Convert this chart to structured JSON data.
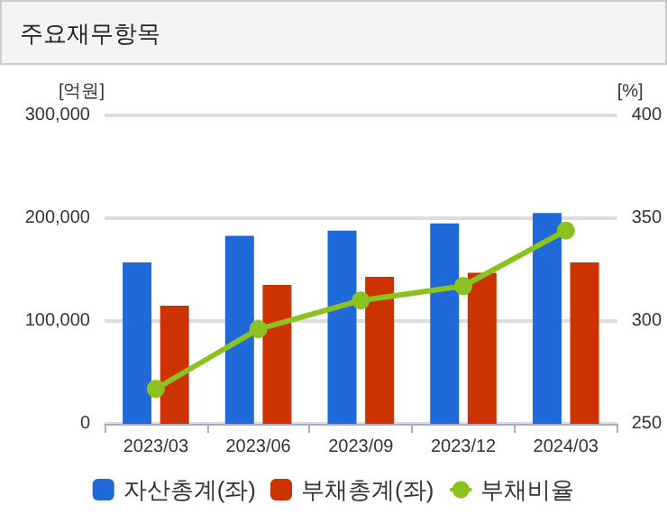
{
  "chart_data": {
    "type": "bar",
    "title": "주요재무항목",
    "ylabel": "[억원]",
    "y2label": "[%]",
    "categories": [
      "2023/03",
      "2023/06",
      "2023/09",
      "2023/12",
      "2024/03"
    ],
    "series": [
      {
        "name": "자산총계(좌)",
        "color": "#1f6ad8",
        "values": [
          157000,
          183000,
          188000,
          195000,
          205000
        ]
      },
      {
        "name": "부채총계(좌)",
        "color": "#cc3300",
        "values": [
          115000,
          135000,
          143000,
          147000,
          157000
        ]
      },
      {
        "name": "부채비율",
        "type": "line",
        "axis": "y2",
        "color": "#8cc21f",
        "marker": "circle",
        "values": [
          267,
          296,
          310,
          317,
          344
        ]
      }
    ],
    "ylim": [
      0,
      300000
    ],
    "yticks": [
      0,
      {
        "value": 100000,
        "label": "100,000"
      },
      {
        "value": 200000,
        "label": "200,000"
      },
      {
        "value": 300000,
        "label": "300,000"
      }
    ],
    "y2lim": [
      250,
      400
    ],
    "y2ticks": [
      250,
      300,
      350,
      400
    ],
    "grid": "y",
    "legend": "bottom"
  }
}
